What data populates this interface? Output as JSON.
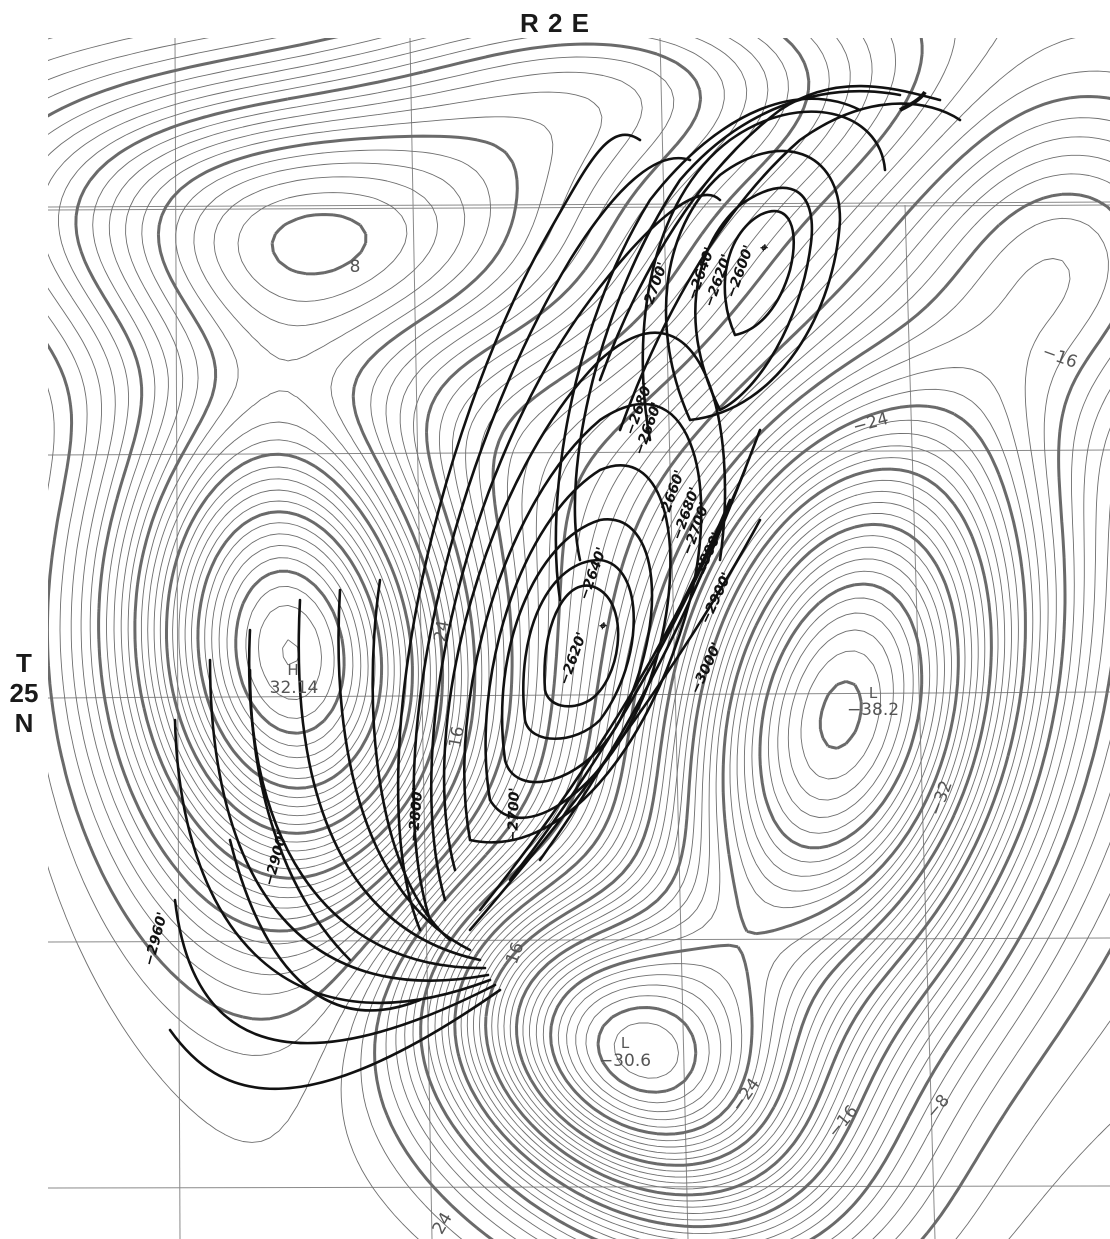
{
  "map": {
    "title_top": "R 2 E",
    "title_side": [
      "T",
      "25",
      "N"
    ]
  },
  "colors": {
    "background": "#ffffff",
    "thin_contour": "#6e6e6e",
    "index_contour": "#6a6a6a",
    "structure_contour": "#111111",
    "grid": "#8a8a8a"
  },
  "gravity_labels": {
    "l_8": "8",
    "l_m16_right": "−16",
    "l_m24_right": "−24",
    "l_24_center": "24",
    "l_16_center": "16",
    "l_m32": "−32",
    "l_m24_bottom": "−24",
    "l_m16_bottom": "−16",
    "l_m8_bottom": "−8",
    "l_16_lower": "16",
    "l_24_bottom": "24",
    "h_marker": "H",
    "h_value": "32.14",
    "l_marker_right": "L",
    "l_value_right": "−38.2",
    "l_marker_bottom": "L",
    "l_value_bottom": "−30.6"
  },
  "structure_labels": {
    "s_2640_top": "−2640'",
    "s_2620_top": "−2620'",
    "s_2600_top": "−2600'",
    "s_2700_top": "−2700'",
    "s_2680_a": "−2680'",
    "s_2660_a": "−2660'",
    "s_2660_b": "−2660'",
    "s_2680_b": "−2680'",
    "s_2700_b": "−2700'",
    "s_2640_mid": "−2640'",
    "s_2620_mid": "−2620'",
    "s_2800_r": "−2800'",
    "s_2900_r": "−2900'",
    "s_3000_r": "−3000'",
    "s_2700_c": "−2700'",
    "s_2800_l": "−2800'",
    "s_2900_l": "−2900'",
    "s_2960_l": "−2960'"
  }
}
